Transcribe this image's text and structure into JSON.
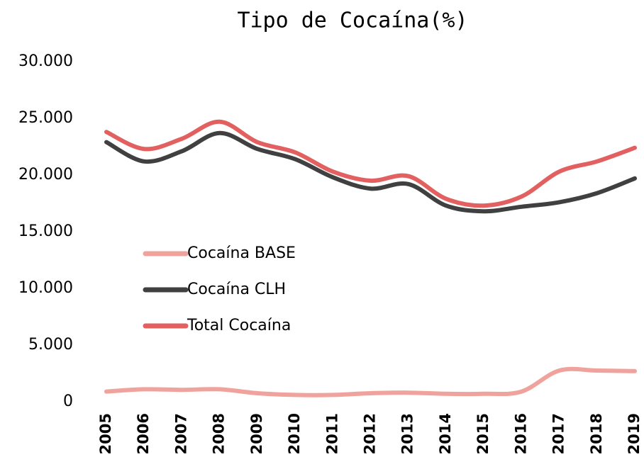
{
  "chart_data": {
    "type": "line",
    "title": "Tipo de Cocaína(%)",
    "categories": [
      "2005",
      "2006",
      "2007",
      "2008",
      "2009",
      "2010",
      "2011",
      "2012",
      "2013",
      "2014",
      "2015",
      "2016",
      "2017",
      "2018",
      "2019"
    ],
    "series": [
      {
        "name": "Cocaína BASE",
        "color": "#f0a39c",
        "values": [
          900,
          1100,
          1050,
          1100,
          750,
          600,
          600,
          750,
          800,
          700,
          700,
          900,
          2750,
          2750,
          2700
        ]
      },
      {
        "name": "Cocaína CLH",
        "color": "#404040",
        "values": [
          22900,
          21200,
          22100,
          23700,
          22300,
          21400,
          19800,
          18800,
          19200,
          17300,
          16800,
          17200,
          17600,
          18400,
          19700
        ]
      },
      {
        "name": "Total Cocaína",
        "color": "#e26060",
        "values": [
          23800,
          22300,
          23200,
          24700,
          22900,
          22000,
          20300,
          19500,
          19900,
          17900,
          17300,
          18100,
          20300,
          21200,
          22400
        ]
      }
    ],
    "ylim": [
      0,
      30000
    ],
    "yticks": [
      0,
      {
        "value": 5000,
        "label": "5.000"
      },
      {
        "value": 10000,
        "label": "10.000"
      },
      {
        "value": 15000,
        "label": "15.000"
      },
      {
        "value": 20000,
        "label": "20.000"
      },
      {
        "value": 25000,
        "label": "25.000"
      },
      {
        "value": 30000,
        "label": "30.000"
      }
    ],
    "grid": false,
    "legend": "left"
  }
}
